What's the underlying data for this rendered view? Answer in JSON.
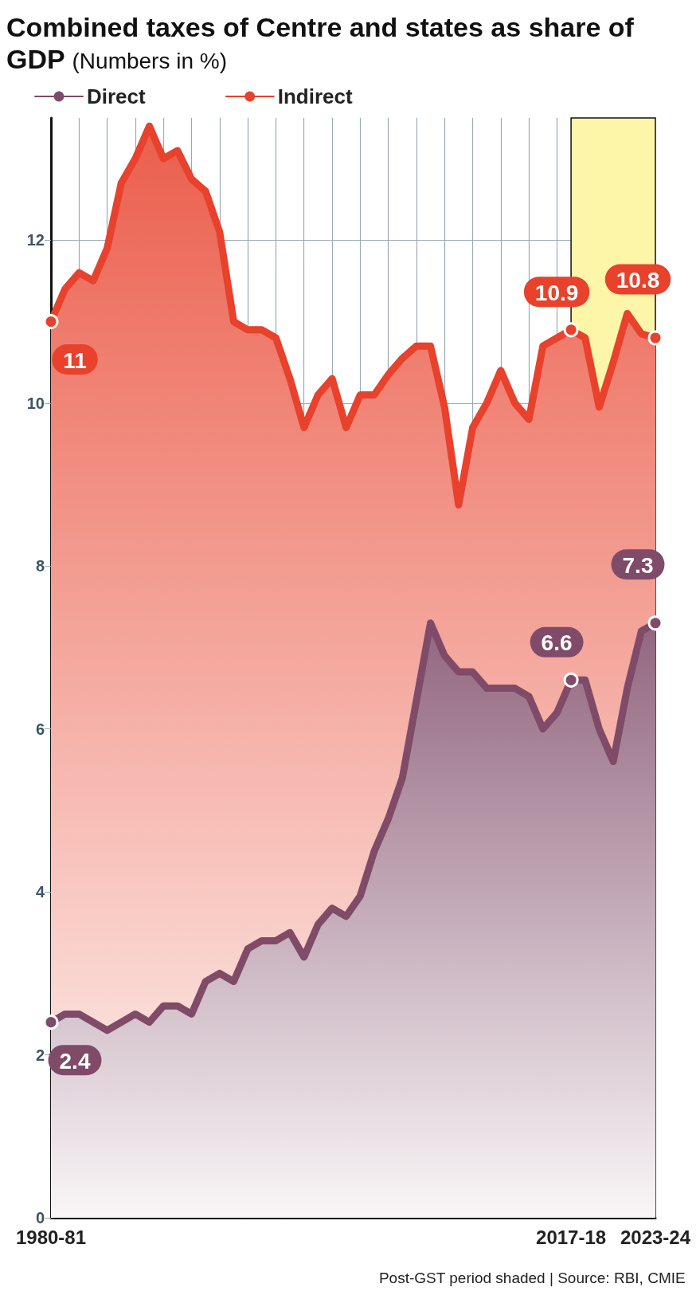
{
  "chart_data": {
    "type": "area",
    "title": "Combined taxes of Centre and states as share of GDP",
    "subtitle": "(Numbers in %)",
    "categories": [
      "1980-81",
      null,
      null,
      null,
      null,
      null,
      null,
      null,
      null,
      null,
      null,
      null,
      null,
      null,
      null,
      null,
      null,
      null,
      null,
      null,
      null,
      null,
      null,
      null,
      null,
      null,
      null,
      null,
      null,
      null,
      null,
      null,
      null,
      null,
      null,
      null,
      null,
      "2017-18",
      null,
      null,
      null,
      null,
      null,
      "2023-24"
    ],
    "series": [
      {
        "name": "Direct",
        "color": "#7f4b68",
        "values": [
          2.4,
          2.5,
          2.5,
          2.4,
          2.3,
          2.4,
          2.5,
          2.4,
          2.6,
          2.6,
          2.5,
          2.9,
          3.0,
          2.9,
          3.3,
          3.4,
          3.4,
          3.5,
          3.2,
          3.6,
          3.8,
          3.7,
          3.95,
          4.5,
          4.9,
          5.4,
          6.35,
          7.3,
          6.9,
          6.7,
          6.7,
          6.5,
          6.5,
          6.5,
          6.4,
          6.0,
          6.2,
          6.6,
          6.6,
          6.0,
          5.6,
          6.5,
          7.2,
          7.3
        ],
        "value_labels": [
          "2.4",
          null,
          null,
          null,
          null,
          null,
          null,
          null,
          null,
          null,
          null,
          null,
          null,
          null,
          null,
          null,
          null,
          null,
          null,
          null,
          null,
          null,
          null,
          null,
          null,
          null,
          null,
          null,
          null,
          null,
          null,
          null,
          null,
          null,
          null,
          null,
          null,
          "6.6",
          null,
          null,
          null,
          null,
          null,
          "7.3"
        ]
      },
      {
        "name": "Indirect",
        "color": "#e8412c",
        "values": [
          11.0,
          11.4,
          11.6,
          11.5,
          11.9,
          12.7,
          13.0,
          13.4,
          13.0,
          13.1,
          12.75,
          12.6,
          12.1,
          11.0,
          10.9,
          10.9,
          10.8,
          10.3,
          9.7,
          10.1,
          10.3,
          9.7,
          10.1,
          10.1,
          10.35,
          10.55,
          10.7,
          10.7,
          9.95,
          8.75,
          9.7,
          10.0,
          10.4,
          10.0,
          9.8,
          10.7,
          10.8,
          10.9,
          10.8,
          9.95,
          10.5,
          11.1,
          10.85,
          10.8
        ],
        "value_labels": [
          "11",
          null,
          null,
          null,
          null,
          null,
          null,
          null,
          null,
          null,
          null,
          null,
          null,
          null,
          null,
          null,
          null,
          null,
          null,
          null,
          null,
          null,
          null,
          null,
          null,
          null,
          null,
          null,
          null,
          null,
          null,
          null,
          null,
          null,
          null,
          null,
          null,
          "10.9",
          null,
          null,
          null,
          null,
          null,
          "10.8"
        ]
      }
    ],
    "ylim": [
      0,
      13.5
    ],
    "yticks": [
      0,
      2,
      4,
      6,
      8,
      10,
      12
    ],
    "grid": true,
    "legend": "top left",
    "bands": [
      {
        "axis": "x",
        "from": "2017-18",
        "to": "2023-24",
        "color": "#fdf5a8"
      }
    ],
    "annotations": [
      "Post-GST period shaded | Source: RBI, CMIE"
    ]
  }
}
